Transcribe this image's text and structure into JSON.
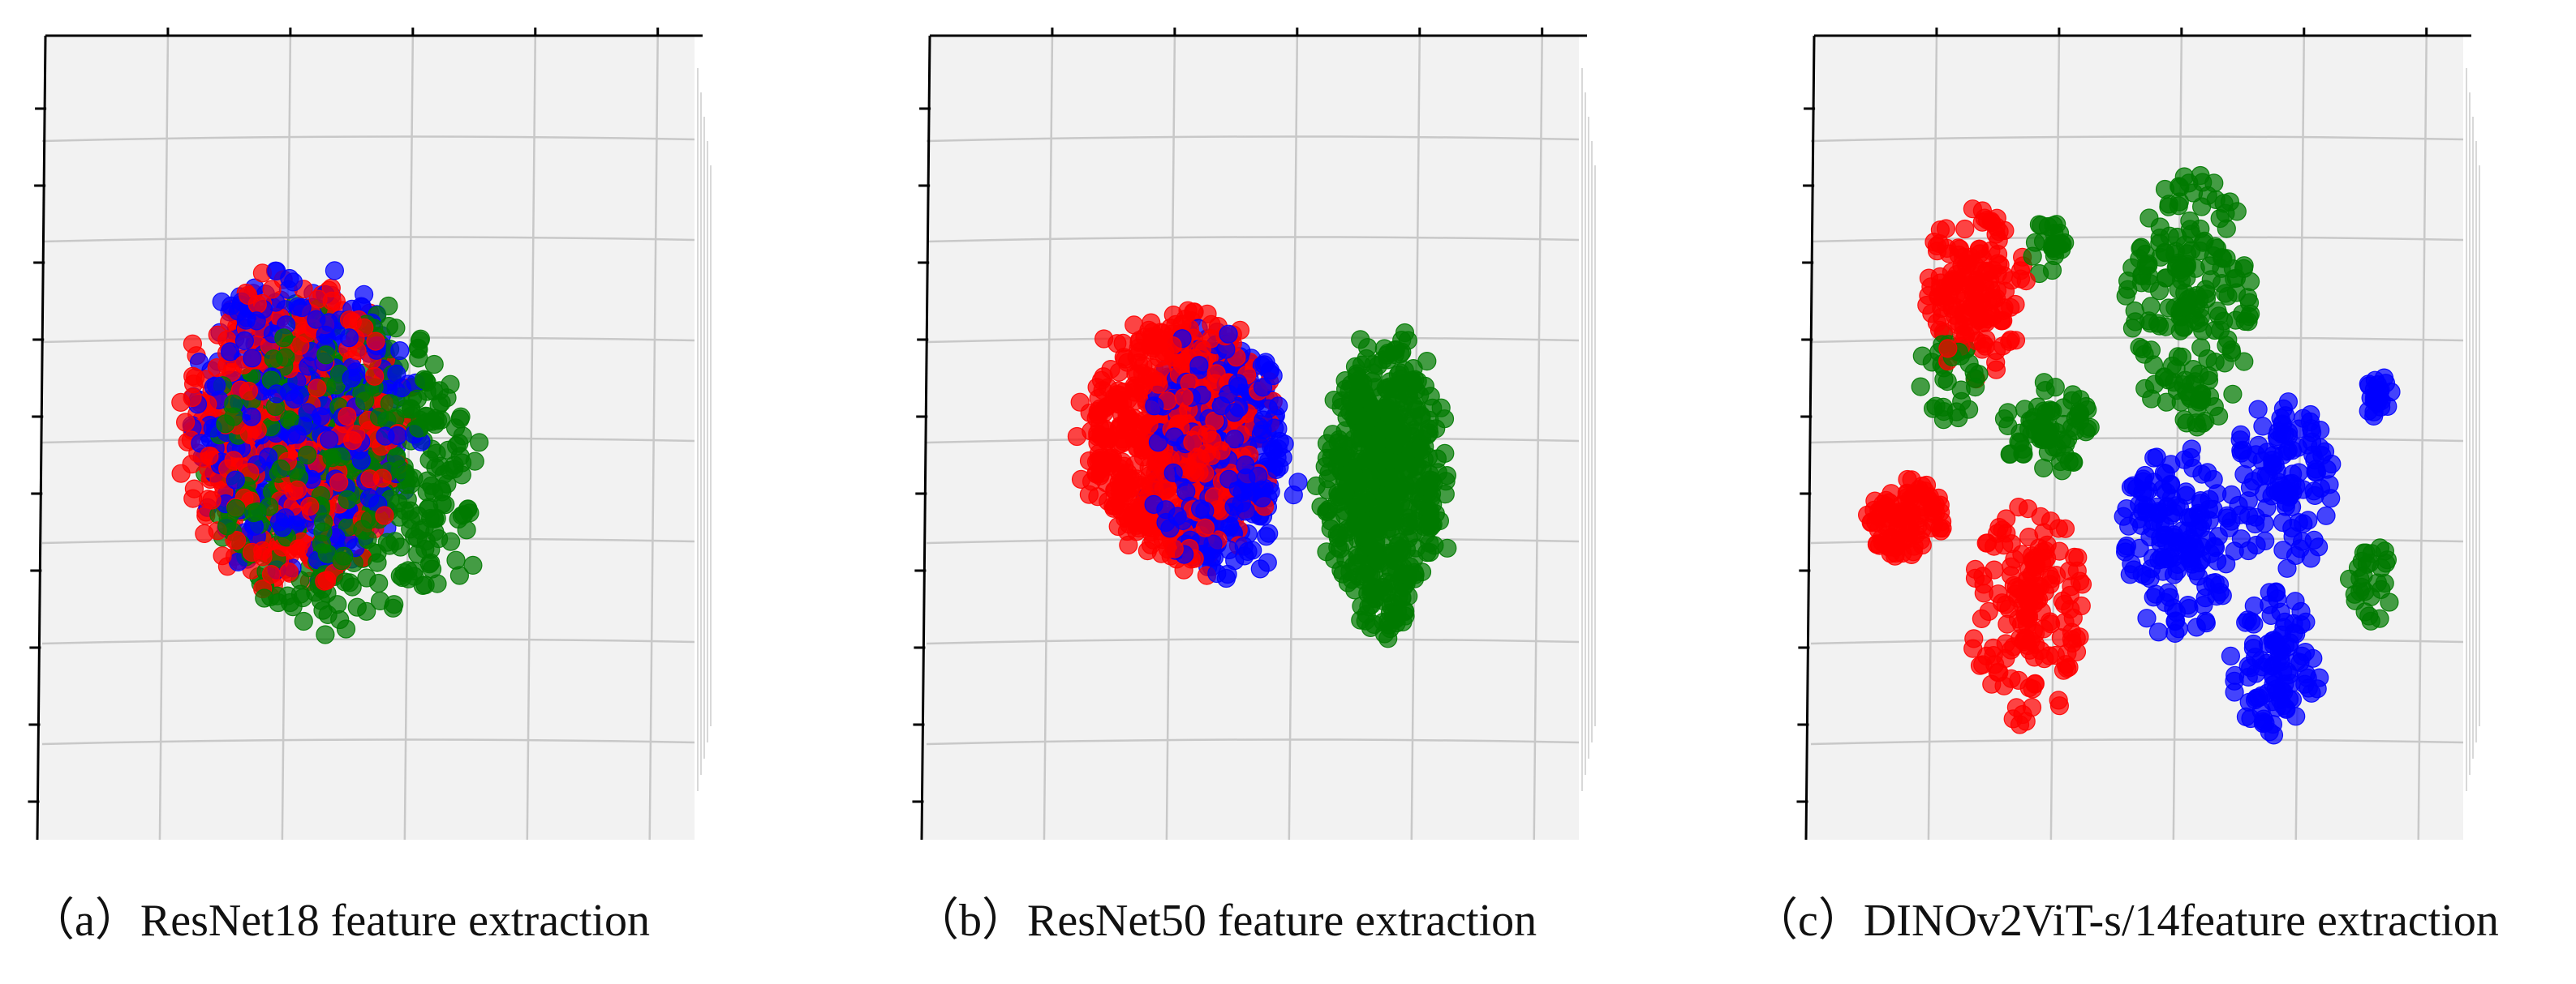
{
  "figure": {
    "captions": [
      "（a）ResNet18 feature extraction",
      "（b）ResNet50 feature extraction",
      "（c）DINOv2ViT-s/14feature extraction"
    ]
  },
  "colors": {
    "class_red": "#ff0000",
    "class_blue": "#0000ff",
    "class_green": "#007a00",
    "pane": "#f2f2f2",
    "grid": "#c8c8c8",
    "axis": "#000000"
  },
  "chart_data": [
    {
      "type": "scatter",
      "subtype": "3d-scatter",
      "title": "",
      "caption": "（a）ResNet18 feature extraction",
      "tick_labels_shown": false,
      "grid": true,
      "legend": "none",
      "series": [
        {
          "color": "red",
          "point_count": 500,
          "distribution": "ball",
          "center": [
            0.38,
            0.5
          ],
          "spread": [
            0.34,
            0.38
          ]
        },
        {
          "color": "blue",
          "point_count": 450,
          "distribution": "ball",
          "center": [
            0.4,
            0.48
          ],
          "spread": [
            0.33,
            0.38
          ]
        },
        {
          "color": "green",
          "point_count": 550,
          "distribution": "ball",
          "center": [
            0.46,
            0.54
          ],
          "spread": [
            0.4,
            0.39
          ]
        }
      ]
    },
    {
      "type": "scatter",
      "subtype": "3d-scatter",
      "title": "",
      "caption": "（b）ResNet50 feature extraction",
      "tick_labels_shown": false,
      "grid": true,
      "legend": "none",
      "series": [
        {
          "color": "blue",
          "point_count": 380,
          "distribution": "ball",
          "center": [
            0.44,
            0.52
          ],
          "spread": [
            0.2,
            0.3
          ]
        },
        {
          "color": "red",
          "point_count": 700,
          "distribution": "ball",
          "center": [
            0.38,
            0.5
          ],
          "spread": [
            0.27,
            0.3
          ]
        },
        {
          "color": "green",
          "point_count": 550,
          "distribution": "ball",
          "center": [
            0.7,
            0.56
          ],
          "spread": [
            0.17,
            0.36
          ]
        }
      ]
    },
    {
      "type": "scatter",
      "subtype": "3d-scatter",
      "title": "",
      "caption": "（c）DINOv2ViT-s/14feature extraction",
      "tick_labels_shown": false,
      "grid": true,
      "legend": "none",
      "series": [
        {
          "color": "red",
          "point_count": 420,
          "distribution": "clusters",
          "clusters": [
            [
              0.25,
              0.32,
              0.08,
              0.11,
              0.4
            ],
            [
              0.14,
              0.6,
              0.06,
              0.05,
              0.2
            ],
            [
              0.33,
              0.72,
              0.09,
              0.14,
              0.4
            ]
          ]
        },
        {
          "color": "green",
          "point_count": 360,
          "distribution": "clusters",
          "clusters": [
            [
              0.58,
              0.33,
              0.1,
              0.16,
              0.55
            ],
            [
              0.36,
              0.49,
              0.07,
              0.06,
              0.2
            ],
            [
              0.21,
              0.42,
              0.05,
              0.06,
              0.1
            ],
            [
              0.86,
              0.68,
              0.04,
              0.05,
              0.08
            ],
            [
              0.36,
              0.26,
              0.03,
              0.04,
              0.07
            ]
          ]
        },
        {
          "color": "blue",
          "point_count": 400,
          "distribution": "clusters",
          "clusters": [
            [
              0.56,
              0.63,
              0.09,
              0.12,
              0.45
            ],
            [
              0.71,
              0.78,
              0.07,
              0.09,
              0.25
            ],
            [
              0.72,
              0.56,
              0.08,
              0.11,
              0.25
            ],
            [
              0.87,
              0.45,
              0.02,
              0.03,
              0.05
            ]
          ]
        }
      ]
    }
  ]
}
